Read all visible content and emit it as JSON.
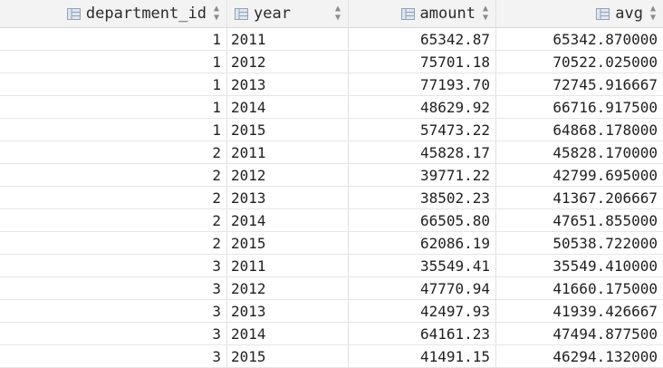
{
  "columns": [
    {
      "label": "department_id",
      "icon": "table-column-icon",
      "sort_icon": "sort-icon"
    },
    {
      "label": "year",
      "icon": "table-column-icon",
      "sort_icon": "sort-icon"
    },
    {
      "label": "amount",
      "icon": "table-column-icon",
      "sort_icon": "sort-icon"
    },
    {
      "label": "avg",
      "icon": "table-column-icon",
      "sort_icon": "sort-icon"
    }
  ],
  "rows": [
    [
      "1",
      "2011",
      "65342.87",
      "65342.870000"
    ],
    [
      "1",
      "2012",
      "75701.18",
      "70522.025000"
    ],
    [
      "1",
      "2013",
      "77193.70",
      "72745.916667"
    ],
    [
      "1",
      "2014",
      "48629.92",
      "66716.917500"
    ],
    [
      "1",
      "2015",
      "57473.22",
      "64868.178000"
    ],
    [
      "2",
      "2011",
      "45828.17",
      "45828.170000"
    ],
    [
      "2",
      "2012",
      "39771.22",
      "42799.695000"
    ],
    [
      "2",
      "2013",
      "38502.23",
      "41367.206667"
    ],
    [
      "2",
      "2014",
      "66505.80",
      "47651.855000"
    ],
    [
      "2",
      "2015",
      "62086.19",
      "50538.722000"
    ],
    [
      "3",
      "2011",
      "35549.41",
      "35549.410000"
    ],
    [
      "3",
      "2012",
      "47770.94",
      "41660.175000"
    ],
    [
      "3",
      "2013",
      "42497.93",
      "41939.426667"
    ],
    [
      "3",
      "2014",
      "64161.23",
      "47494.877500"
    ],
    [
      "3",
      "2015",
      "41491.15",
      "46294.132000"
    ]
  ],
  "colors": {
    "header_bg": "#f3f3f3",
    "grid_line": "#e6e6e6",
    "icon": "#8fa3b8"
  }
}
